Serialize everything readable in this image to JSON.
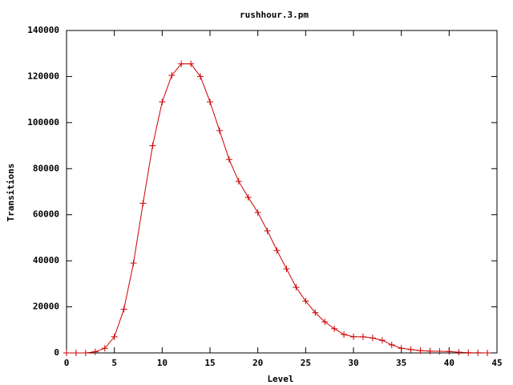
{
  "chart_data": {
    "type": "line",
    "title": "rushhour.3.pm",
    "x_label": "Level",
    "y_label": "Transitions",
    "x": [
      0,
      1,
      2,
      3,
      4,
      5,
      6,
      7,
      8,
      9,
      10,
      11,
      12,
      13,
      14,
      15,
      16,
      17,
      18,
      19,
      20,
      21,
      22,
      23,
      24,
      25,
      26,
      27,
      28,
      29,
      30,
      31,
      32,
      33,
      34,
      35,
      36,
      37,
      38,
      39,
      40,
      41,
      42,
      43,
      44
    ],
    "series": [
      {
        "color": "#cc0000",
        "values": [
          0,
          0,
          0,
          500,
          2000,
          7000,
          19000,
          39000,
          65000,
          90000,
          109000,
          120500,
          125500,
          125500,
          120000,
          109000,
          96500,
          84000,
          74500,
          67500,
          61000,
          53000,
          44500,
          36500,
          28500,
          22500,
          17500,
          13500,
          10500,
          8000,
          7000,
          7000,
          6500,
          5500,
          3500,
          2000,
          1500,
          1000,
          800,
          700,
          600,
          300,
          100,
          50,
          20
        ]
      }
    ],
    "xlim": [
      0,
      45
    ],
    "xticks": [
      0,
      5,
      10,
      15,
      20,
      25,
      30,
      35,
      40,
      45
    ],
    "ylim": [
      0,
      140000
    ],
    "yticks": [
      0,
      20000,
      40000,
      60000,
      80000,
      100000,
      120000,
      140000
    ],
    "grid": false
  }
}
